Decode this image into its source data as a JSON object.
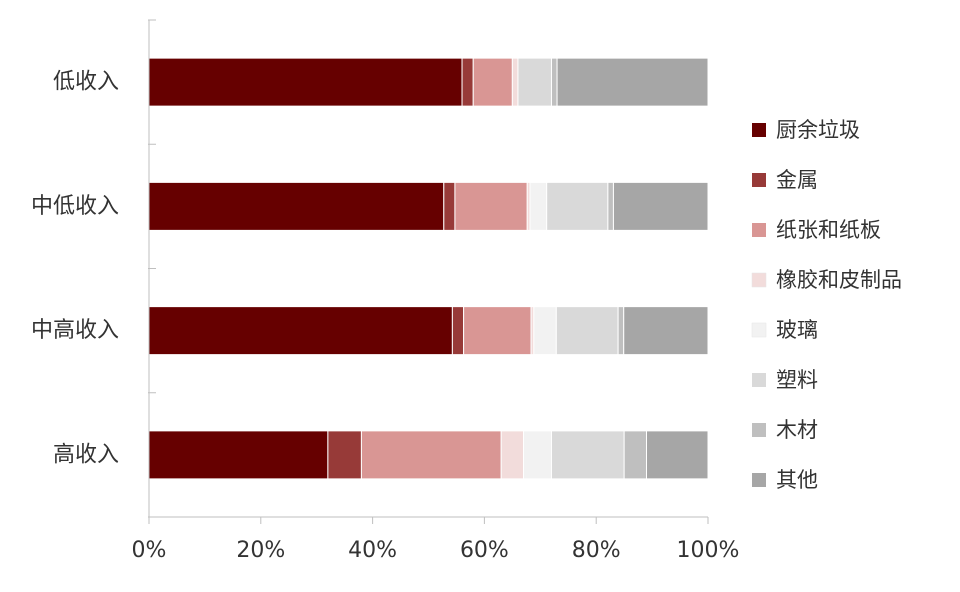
{
  "chart_data": {
    "type": "bar",
    "orientation": "horizontal",
    "stacked": "percent",
    "categories": [
      "低收入",
      "中低收入",
      "中高收入",
      "高收入"
    ],
    "series": [
      {
        "name": "厨余垃圾",
        "color": "#660000",
        "values": [
          56,
          53,
          54,
          32
        ]
      },
      {
        "name": "金属",
        "color": "#973a38",
        "values": [
          2,
          2,
          2,
          6
        ]
      },
      {
        "name": "纸张和纸板",
        "color": "#d99694",
        "values": [
          7,
          13,
          12,
          25
        ]
      },
      {
        "name": "橡胶和皮制品",
        "color": "#f2dcdb",
        "values": [
          1,
          0.5,
          0.5,
          4
        ]
      },
      {
        "name": "玻璃",
        "color": "#f2f2f2",
        "values": [
          0,
          3,
          4,
          5
        ]
      },
      {
        "name": "塑料",
        "color": "#d9d9d9",
        "values": [
          6,
          11,
          11,
          13
        ]
      },
      {
        "name": "木材",
        "color": "#bfbfbf",
        "values": [
          1,
          1,
          1,
          4
        ]
      },
      {
        "name": "其他",
        "color": "#a6a6a6",
        "values": [
          27,
          17,
          15,
          11
        ]
      }
    ],
    "xlim": [
      0,
      100
    ],
    "xticks": [
      "0%",
      "20%",
      "40%",
      "60%",
      "80%",
      "100%"
    ],
    "title": "",
    "xlabel": "",
    "ylabel": "",
    "grid": false,
    "legend_position": "right"
  }
}
